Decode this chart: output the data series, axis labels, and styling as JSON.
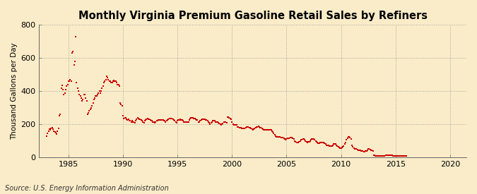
{
  "title": "Monthly Virginia Premium Gasoline Retail Sales by Refiners",
  "ylabel": "Thousand Gallons per Day",
  "source": "Source: U.S. Energy Information Administration",
  "bg_color": "#faecc8",
  "plot_bg_color": "#faecc8",
  "marker_color": "#cc0000",
  "xlim": [
    1982.3,
    2021.5
  ],
  "ylim": [
    0,
    800
  ],
  "yticks": [
    0,
    200,
    400,
    600,
    800
  ],
  "xticks": [
    1985,
    1990,
    1995,
    2000,
    2005,
    2010,
    2015,
    2020
  ],
  "title_fontsize": 10.5,
  "label_fontsize": 7.5,
  "tick_fontsize": 8,
  "source_fontsize": 7,
  "data": {
    "dates": [
      1983.0,
      1983.083,
      1983.167,
      1983.25,
      1983.333,
      1983.417,
      1983.5,
      1983.583,
      1983.667,
      1983.75,
      1983.833,
      1983.917,
      1984.0,
      1984.083,
      1984.167,
      1984.25,
      1984.333,
      1984.417,
      1984.5,
      1984.583,
      1984.667,
      1984.75,
      1984.833,
      1984.917,
      1985.0,
      1985.083,
      1985.167,
      1985.25,
      1985.333,
      1985.417,
      1985.5,
      1985.583,
      1985.667,
      1985.75,
      1985.833,
      1985.917,
      1986.0,
      1986.083,
      1986.167,
      1986.25,
      1986.333,
      1986.417,
      1986.5,
      1986.583,
      1986.667,
      1986.75,
      1986.833,
      1986.917,
      1987.0,
      1987.083,
      1987.167,
      1987.25,
      1987.333,
      1987.417,
      1987.5,
      1987.583,
      1987.667,
      1987.75,
      1987.833,
      1987.917,
      1988.0,
      1988.083,
      1988.167,
      1988.25,
      1988.333,
      1988.417,
      1988.5,
      1988.583,
      1988.667,
      1988.75,
      1988.833,
      1988.917,
      1989.0,
      1989.083,
      1989.167,
      1989.25,
      1989.333,
      1989.417,
      1989.5,
      1989.583,
      1989.667,
      1989.75,
      1989.833,
      1989.917,
      1990.0,
      1990.083,
      1990.167,
      1990.25,
      1990.333,
      1990.417,
      1990.5,
      1990.583,
      1990.667,
      1990.75,
      1990.833,
      1990.917,
      1991.0,
      1991.083,
      1991.167,
      1991.25,
      1991.333,
      1991.417,
      1991.5,
      1991.583,
      1991.667,
      1991.75,
      1991.833,
      1991.917,
      1992.0,
      1992.083,
      1992.167,
      1992.25,
      1992.333,
      1992.417,
      1992.5,
      1992.583,
      1992.667,
      1992.75,
      1992.833,
      1992.917,
      1993.0,
      1993.083,
      1993.167,
      1993.25,
      1993.333,
      1993.417,
      1993.5,
      1993.583,
      1993.667,
      1993.75,
      1993.833,
      1993.917,
      1994.0,
      1994.083,
      1994.167,
      1994.25,
      1994.333,
      1994.417,
      1994.5,
      1994.583,
      1994.667,
      1994.75,
      1994.833,
      1994.917,
      1995.0,
      1995.083,
      1995.167,
      1995.25,
      1995.333,
      1995.417,
      1995.5,
      1995.583,
      1995.667,
      1995.75,
      1995.833,
      1995.917,
      1996.0,
      1996.083,
      1996.167,
      1996.25,
      1996.333,
      1996.417,
      1996.5,
      1996.583,
      1996.667,
      1996.75,
      1996.833,
      1996.917,
      1997.0,
      1997.083,
      1997.167,
      1997.25,
      1997.333,
      1997.417,
      1997.5,
      1997.583,
      1997.667,
      1997.75,
      1997.833,
      1997.917,
      1998.0,
      1998.083,
      1998.167,
      1998.25,
      1998.333,
      1998.417,
      1998.5,
      1998.583,
      1998.667,
      1998.75,
      1998.833,
      1998.917,
      1999.0,
      1999.083,
      1999.167,
      1999.25,
      1999.333,
      1999.417,
      1999.5,
      1999.583,
      1999.667,
      1999.75,
      1999.833,
      1999.917,
      2000.0,
      2000.083,
      2000.167,
      2000.25,
      2000.333,
      2000.417,
      2000.5,
      2000.583,
      2000.667,
      2000.75,
      2000.833,
      2000.917,
      2001.0,
      2001.083,
      2001.167,
      2001.25,
      2001.333,
      2001.417,
      2001.5,
      2001.583,
      2001.667,
      2001.75,
      2001.833,
      2001.917,
      2002.0,
      2002.083,
      2002.167,
      2002.25,
      2002.333,
      2002.417,
      2002.5,
      2002.583,
      2002.667,
      2002.75,
      2002.833,
      2002.917,
      2003.0,
      2003.083,
      2003.167,
      2003.25,
      2003.333,
      2003.417,
      2003.5,
      2003.583,
      2003.667,
      2003.75,
      2003.833,
      2003.917,
      2004.0,
      2004.083,
      2004.167,
      2004.25,
      2004.333,
      2004.417,
      2004.5,
      2004.583,
      2004.667,
      2004.75,
      2004.833,
      2004.917,
      2005.0,
      2005.083,
      2005.167,
      2005.25,
      2005.333,
      2005.417,
      2005.5,
      2005.583,
      2005.667,
      2005.75,
      2005.833,
      2005.917,
      2006.0,
      2006.083,
      2006.167,
      2006.25,
      2006.333,
      2006.417,
      2006.5,
      2006.583,
      2006.667,
      2006.75,
      2006.833,
      2006.917,
      2007.0,
      2007.083,
      2007.167,
      2007.25,
      2007.333,
      2007.417,
      2007.5,
      2007.583,
      2007.667,
      2007.75,
      2007.833,
      2007.917,
      2008.0,
      2008.083,
      2008.167,
      2008.25,
      2008.333,
      2008.417,
      2008.5,
      2008.583,
      2008.667,
      2008.75,
      2008.833,
      2008.917,
      2009.0,
      2009.083,
      2009.167,
      2009.25,
      2009.333,
      2009.417,
      2009.5,
      2009.583,
      2009.667,
      2009.75,
      2009.833,
      2009.917,
      2010.0,
      2010.083,
      2010.167,
      2010.25,
      2010.333,
      2010.417,
      2010.5,
      2010.583,
      2010.667,
      2010.75,
      2010.833,
      2010.917,
      2011.0,
      2011.083,
      2011.167,
      2011.25,
      2011.333,
      2011.417,
      2011.5,
      2011.583,
      2011.667,
      2011.75,
      2011.833,
      2011.917,
      2012.0,
      2012.083,
      2012.167,
      2012.25,
      2012.333,
      2012.417,
      2012.5,
      2012.583,
      2012.667,
      2012.75,
      2012.833,
      2012.917,
      2013.0,
      2013.083,
      2013.167,
      2013.25,
      2013.333,
      2013.417,
      2013.5,
      2013.583,
      2013.667,
      2013.75,
      2013.833,
      2013.917,
      2014.0,
      2014.083,
      2014.167,
      2014.25,
      2014.333,
      2014.417,
      2014.5,
      2014.583,
      2014.667,
      2014.75,
      2014.833,
      2014.917,
      2015.0,
      2015.083,
      2015.167,
      2015.25,
      2015.333,
      2015.417,
      2015.5,
      2015.583,
      2015.667,
      2015.75,
      2015.833,
      2015.917,
      2016.0
    ],
    "values": [
      130,
      145,
      160,
      170,
      165,
      175,
      180,
      170,
      160,
      155,
      150,
      140,
      160,
      175,
      250,
      260,
      420,
      435,
      410,
      380,
      390,
      410,
      430,
      440,
      460,
      460,
      470,
      460,
      630,
      640,
      560,
      580,
      730,
      450,
      420,
      400,
      380,
      370,
      360,
      340,
      350,
      380,
      380,
      360,
      340,
      260,
      270,
      280,
      290,
      300,
      310,
      330,
      350,
      360,
      370,
      370,
      380,
      390,
      400,
      390,
      400,
      420,
      430,
      450,
      460,
      470,
      490,
      480,
      470,
      460,
      460,
      450,
      450,
      460,
      465,
      460,
      460,
      450,
      440,
      440,
      430,
      330,
      320,
      310,
      250,
      235,
      240,
      240,
      230,
      225,
      230,
      220,
      220,
      215,
      220,
      215,
      215,
      210,
      220,
      230,
      240,
      235,
      230,
      230,
      225,
      220,
      215,
      210,
      220,
      225,
      230,
      235,
      230,
      230,
      225,
      220,
      220,
      215,
      215,
      210,
      215,
      220,
      220,
      225,
      225,
      225,
      225,
      225,
      225,
      220,
      220,
      215,
      220,
      225,
      230,
      235,
      235,
      235,
      235,
      230,
      225,
      220,
      215,
      210,
      220,
      225,
      225,
      230,
      225,
      225,
      220,
      215,
      215,
      215,
      215,
      215,
      215,
      225,
      235,
      240,
      240,
      240,
      235,
      235,
      230,
      225,
      225,
      215,
      215,
      220,
      225,
      230,
      230,
      230,
      230,
      225,
      225,
      220,
      215,
      210,
      200,
      210,
      215,
      220,
      220,
      220,
      215,
      215,
      215,
      210,
      205,
      200,
      195,
      200,
      205,
      215,
      215,
      215,
      210,
      245,
      245,
      240,
      235,
      230,
      215,
      200,
      195,
      195,
      195,
      195,
      185,
      185,
      180,
      180,
      180,
      175,
      175,
      175,
      175,
      180,
      185,
      185,
      185,
      180,
      180,
      175,
      170,
      165,
      170,
      175,
      180,
      185,
      185,
      190,
      185,
      180,
      180,
      175,
      170,
      165,
      165,
      165,
      165,
      165,
      165,
      165,
      165,
      165,
      160,
      155,
      145,
      135,
      130,
      125,
      125,
      125,
      125,
      125,
      120,
      120,
      120,
      115,
      110,
      105,
      110,
      115,
      115,
      115,
      120,
      120,
      120,
      115,
      110,
      100,
      95,
      90,
      90,
      90,
      95,
      100,
      105,
      105,
      110,
      110,
      105,
      100,
      95,
      90,
      95,
      95,
      100,
      105,
      110,
      110,
      110,
      105,
      100,
      95,
      90,
      85,
      85,
      90,
      90,
      90,
      90,
      90,
      85,
      80,
      75,
      75,
      75,
      70,
      70,
      70,
      70,
      75,
      80,
      80,
      80,
      75,
      70,
      65,
      60,
      55,
      55,
      60,
      65,
      70,
      80,
      90,
      105,
      115,
      125,
      125,
      120,
      110,
      75,
      65,
      55,
      50,
      50,
      50,
      48,
      45,
      45,
      43,
      40,
      38,
      38,
      35,
      35,
      38,
      40,
      45,
      50,
      50,
      48,
      45,
      42,
      40,
      15,
      12,
      10,
      10,
      10,
      8,
      8,
      8,
      8,
      8,
      8,
      8,
      10,
      12,
      12,
      12,
      12,
      15,
      15,
      12,
      12,
      10,
      10,
      10,
      10,
      10,
      10,
      10,
      10,
      8,
      8,
      8,
      8,
      8,
      8,
      8,
      8
    ]
  }
}
